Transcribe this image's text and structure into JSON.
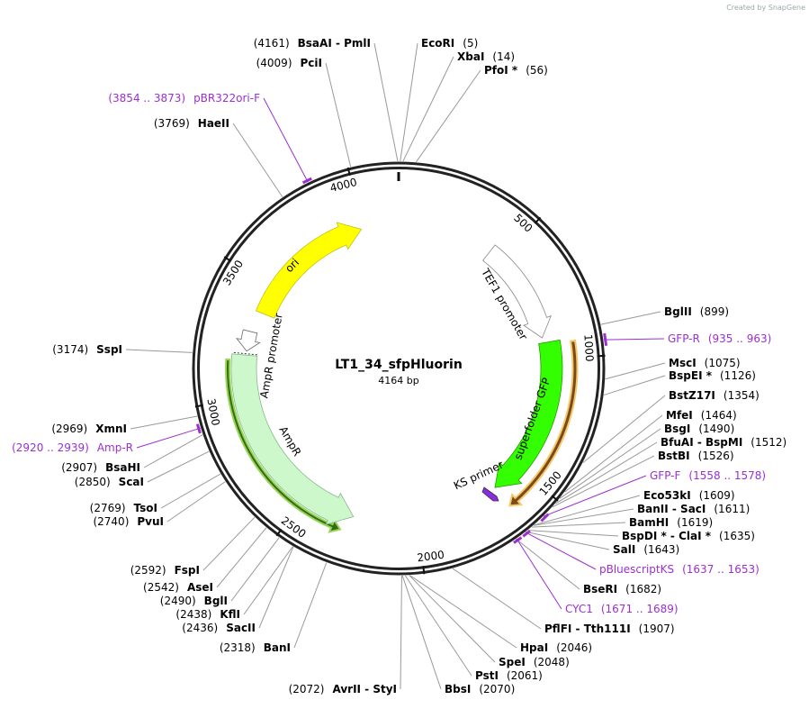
{
  "watermark": "Created by SnapGene",
  "map": {
    "title": "LT1_34_sfpHluorin",
    "size": "4164 bp",
    "ring_ticks": [
      500,
      1000,
      1500,
      2000,
      2500,
      3000,
      3500,
      4000
    ],
    "features": [
      {
        "name": "ori"
      },
      {
        "name": "AmpR promoter"
      },
      {
        "name": "AmpR"
      },
      {
        "name": "TEF1 promoter"
      },
      {
        "name": "superfolder GFP"
      },
      {
        "name": "KS primer"
      }
    ],
    "labels": [
      {
        "name": "BsaAI - PmlI",
        "position": "(4161)"
      },
      {
        "name": "PciI",
        "position": "(4009)"
      },
      {
        "name": "pBR322ori-F",
        "position": "(3854 .. 3873)",
        "color": "#9b30d0"
      },
      {
        "name": "HaeII",
        "position": "(3769)"
      },
      {
        "name": "SspI",
        "position": "(3174)"
      },
      {
        "name": "XmnI",
        "position": "(2969)"
      },
      {
        "name": "Amp-R",
        "position": "(2920 .. 2939)",
        "color": "#9b30d0"
      },
      {
        "name": "BsaHI",
        "position": "(2907)"
      },
      {
        "name": "ScaI",
        "position": "(2850)"
      },
      {
        "name": "TsoI",
        "position": "(2769)"
      },
      {
        "name": "PvuI",
        "position": "(2740)"
      },
      {
        "name": "FspI",
        "position": "(2592)"
      },
      {
        "name": "AseI",
        "position": "(2542)"
      },
      {
        "name": "BglI",
        "position": "(2490)"
      },
      {
        "name": "KflI",
        "position": "(2438)"
      },
      {
        "name": "SacII",
        "position": "(2436)"
      },
      {
        "name": "BanI",
        "position": "(2318)"
      },
      {
        "name": "AvrII - StyI",
        "position": "(2072)"
      },
      {
        "name": "EcoRI",
        "position": "(5)"
      },
      {
        "name": "XbaI",
        "position": "(14)"
      },
      {
        "name": "PfoI *",
        "position": "(56)"
      },
      {
        "name": "BglII",
        "position": "(899)"
      },
      {
        "name": "GFP-R",
        "position": "(935 .. 963)",
        "color": "#9b30d0"
      },
      {
        "name": "MscI",
        "position": "(1075)"
      },
      {
        "name": "BspEI *",
        "position": "(1126)"
      },
      {
        "name": "BstZ17I",
        "position": "(1354)"
      },
      {
        "name": "MfeI",
        "position": "(1464)"
      },
      {
        "name": "BsgI",
        "position": "(1490)"
      },
      {
        "name": "BfuAI - BspMI",
        "position": "(1512)"
      },
      {
        "name": "BstBI",
        "position": "(1526)"
      },
      {
        "name": "GFP-F",
        "position": "(1558 .. 1578)",
        "color": "#9b30d0"
      },
      {
        "name": "Eco53kI",
        "position": "(1609)"
      },
      {
        "name": "BanII - SacI",
        "position": "(1611)"
      },
      {
        "name": "BamHI",
        "position": "(1619)"
      },
      {
        "name": "BspDI * - ClaI *",
        "position": "(1635)"
      },
      {
        "name": "SalI",
        "position": "(1643)"
      },
      {
        "name": "pBluescriptKS",
        "position": "(1637 .. 1653)",
        "color": "#9b30d0"
      },
      {
        "name": "BseRI",
        "position": "(1682)"
      },
      {
        "name": "CYC1",
        "position": "(1671 .. 1689)",
        "color": "#9b30d0"
      },
      {
        "name": "PflFI - Tth111I",
        "position": "(1907)"
      },
      {
        "name": "HpaI",
        "position": "(2046)"
      },
      {
        "name": "SpeI",
        "position": "(2048)"
      },
      {
        "name": "PstI",
        "position": "(2061)"
      },
      {
        "name": "BbsI",
        "position": "(2070)"
      }
    ]
  }
}
